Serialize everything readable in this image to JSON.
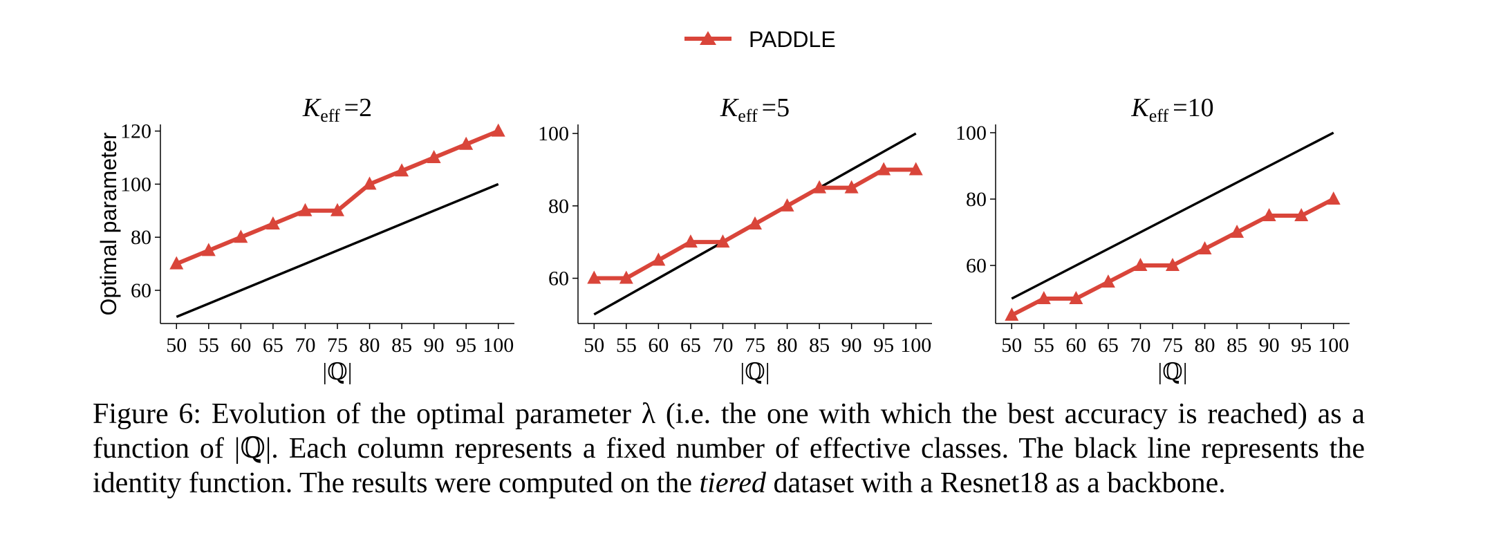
{
  "legend": {
    "label": "PADDLE",
    "position": "top-center"
  },
  "colors": {
    "paddle": "#d9453a",
    "identity": "#000000"
  },
  "chart_data": [
    {
      "type": "line",
      "title_symbol": "K",
      "title_subscript": "eff",
      "title_value": "=2",
      "xlabel": "|ℚ|",
      "ylabel": "Optimal parameter",
      "xlim": [
        47.5,
        102.5
      ],
      "ylim": [
        47.5,
        122.5
      ],
      "x": [
        50,
        55,
        60,
        65,
        70,
        75,
        80,
        85,
        90,
        95,
        100
      ],
      "xticks": [
        50,
        55,
        60,
        65,
        70,
        75,
        80,
        85,
        90,
        95,
        100
      ],
      "yticks": [
        60,
        80,
        100,
        120
      ],
      "grid": false,
      "series": [
        {
          "name": "PADDLE",
          "values": [
            70,
            75,
            80,
            85,
            90,
            90,
            100,
            105,
            110,
            115,
            120
          ]
        },
        {
          "values": [
            50,
            55,
            60,
            65,
            70,
            75,
            80,
            85,
            90,
            95,
            100
          ]
        }
      ]
    },
    {
      "type": "line",
      "title_symbol": "K",
      "title_subscript": "eff",
      "title_value": "=5",
      "xlabel": "|ℚ|",
      "ylabel": "",
      "xlim": [
        47.5,
        102.5
      ],
      "ylim": [
        47.5,
        102.5
      ],
      "x": [
        50,
        55,
        60,
        65,
        70,
        75,
        80,
        85,
        90,
        95,
        100
      ],
      "xticks": [
        50,
        55,
        60,
        65,
        70,
        75,
        80,
        85,
        90,
        95,
        100
      ],
      "yticks": [
        60,
        80,
        100
      ],
      "grid": false,
      "series": [
        {
          "name": "PADDLE",
          "values": [
            60,
            60,
            65,
            70,
            70,
            75,
            80,
            85,
            85,
            90,
            90
          ]
        },
        {
          "values": [
            50,
            55,
            60,
            65,
            70,
            75,
            80,
            85,
            90,
            95,
            100
          ]
        }
      ]
    },
    {
      "type": "line",
      "title_symbol": "K",
      "title_subscript": "eff",
      "title_value": "=10",
      "xlabel": "|ℚ|",
      "ylabel": "",
      "xlim": [
        47.5,
        102.5
      ],
      "ylim": [
        42.5,
        102.5
      ],
      "x": [
        50,
        55,
        60,
        65,
        70,
        75,
        80,
        85,
        90,
        95,
        100
      ],
      "xticks": [
        50,
        55,
        60,
        65,
        70,
        75,
        80,
        85,
        90,
        95,
        100
      ],
      "yticks": [
        60,
        80,
        100
      ],
      "grid": false,
      "series": [
        {
          "name": "PADDLE",
          "values": [
            45,
            50,
            50,
            55,
            60,
            60,
            65,
            70,
            75,
            75,
            80
          ]
        },
        {
          "values": [
            50,
            55,
            60,
            65,
            70,
            75,
            80,
            85,
            90,
            95,
            100
          ]
        }
      ]
    }
  ],
  "caption": {
    "lead": "Figure 6: Evolution of the optimal parameter λ (i.e. the one with which the best accuracy is reached) as a function of |ℚ|. Each column represents a fixed number of effective classes. The black line represents the identity function. The results were computed on the ",
    "italic": "tiered",
    "tail": " dataset with a Resnet18 as a backbone."
  }
}
